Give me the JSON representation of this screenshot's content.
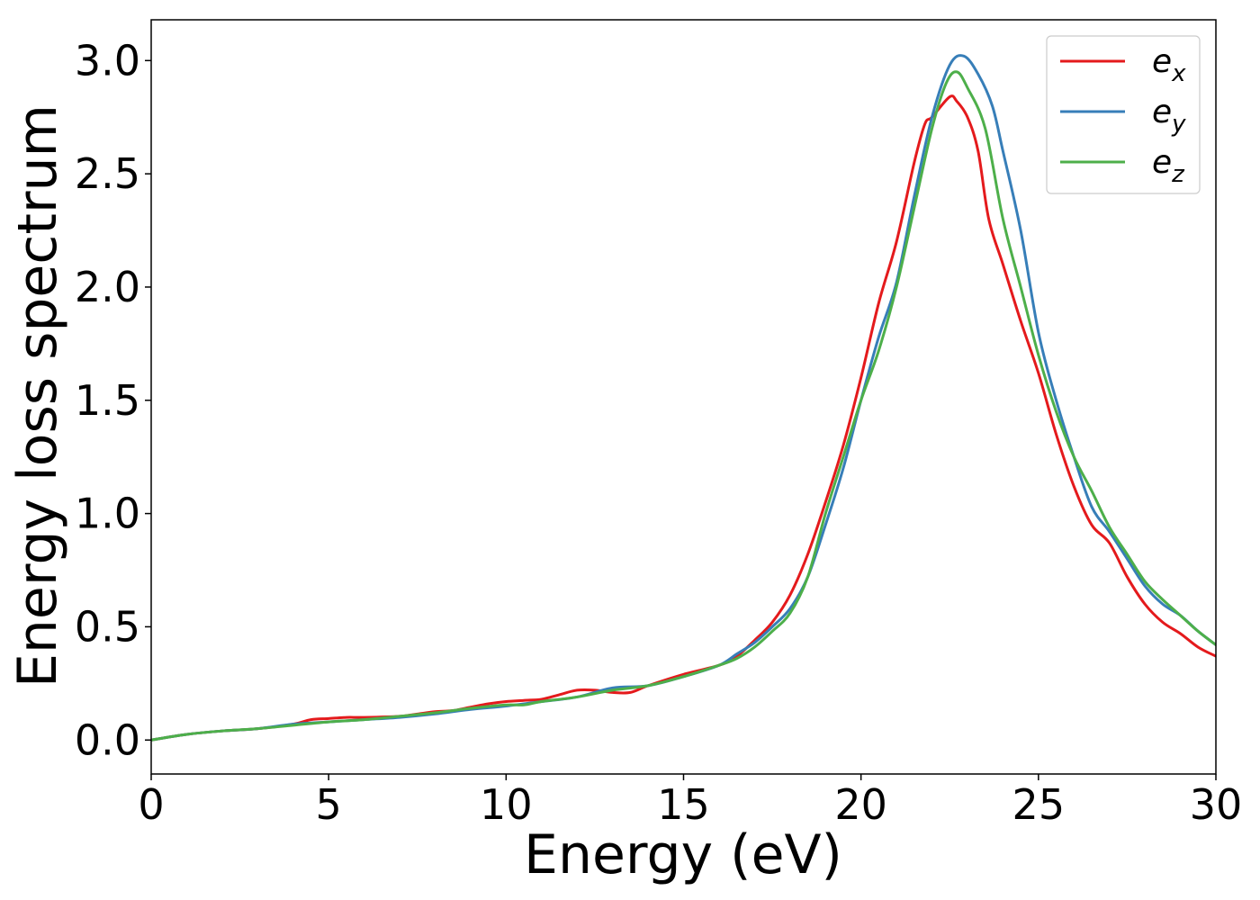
{
  "chart_data": {
    "type": "line",
    "title": "",
    "xlabel": "Energy (eV)",
    "ylabel": "Energy loss spectrum",
    "xlim": [
      0,
      30
    ],
    "ylim": [
      -0.15,
      3.18
    ],
    "xticks": [
      0,
      5,
      10,
      15,
      20,
      25,
      30
    ],
    "xtick_labels": [
      "0",
      "5",
      "10",
      "15",
      "20",
      "25",
      "30"
    ],
    "yticks": [
      0.0,
      0.5,
      1.0,
      1.5,
      2.0,
      2.5,
      3.0
    ],
    "ytick_labels": [
      "0.0",
      "0.5",
      "1.0",
      "1.5",
      "2.0",
      "2.5",
      "3.0"
    ],
    "grid": false,
    "legend_position": "top-right",
    "series": [
      {
        "name": "e",
        "subscript": "x",
        "color": "#e41a1c",
        "x": [
          0,
          1,
          2,
          3,
          4,
          4.5,
          5,
          5.5,
          6,
          7,
          7.5,
          8,
          8.5,
          9,
          9.5,
          10,
          10.5,
          11,
          11.5,
          12,
          12.5,
          13,
          13.5,
          14,
          15,
          16,
          16.5,
          17,
          17.5,
          18,
          18.5,
          19,
          19.5,
          20,
          20.5,
          21,
          21.5,
          21.8,
          22,
          22.5,
          22.7,
          23,
          23.3,
          23.6,
          24,
          24.5,
          25,
          25.5,
          26,
          26.5,
          27,
          27.5,
          28,
          28.5,
          29,
          29.5,
          30
        ],
        "y": [
          0.0,
          0.025,
          0.04,
          0.05,
          0.07,
          0.09,
          0.095,
          0.1,
          0.1,
          0.105,
          0.115,
          0.125,
          0.13,
          0.145,
          0.16,
          0.17,
          0.175,
          0.18,
          0.2,
          0.22,
          0.22,
          0.21,
          0.21,
          0.24,
          0.29,
          0.33,
          0.37,
          0.44,
          0.52,
          0.64,
          0.82,
          1.05,
          1.3,
          1.6,
          1.93,
          2.2,
          2.55,
          2.72,
          2.75,
          2.84,
          2.82,
          2.75,
          2.6,
          2.3,
          2.1,
          1.85,
          1.62,
          1.35,
          1.12,
          0.95,
          0.87,
          0.72,
          0.6,
          0.52,
          0.47,
          0.41,
          0.37
        ]
      },
      {
        "name": "e",
        "subscript": "y",
        "color": "#377eb8",
        "x": [
          0,
          1,
          2,
          3,
          4,
          5,
          6,
          7,
          8,
          9,
          10,
          11,
          12,
          13,
          14,
          15,
          16,
          16.5,
          17,
          17.5,
          18,
          18.5,
          19,
          19.5,
          20,
          20.5,
          21,
          21.5,
          22,
          22.5,
          22.9,
          23.3,
          23.7,
          24,
          24.5,
          25,
          25.5,
          26,
          26.5,
          27,
          27.5,
          28,
          28.5,
          29,
          29.5,
          30
        ],
        "y": [
          0.0,
          0.025,
          0.04,
          0.05,
          0.07,
          0.08,
          0.09,
          0.1,
          0.115,
          0.135,
          0.15,
          0.17,
          0.19,
          0.23,
          0.24,
          0.28,
          0.33,
          0.38,
          0.43,
          0.5,
          0.58,
          0.72,
          0.95,
          1.2,
          1.5,
          1.78,
          2.02,
          2.4,
          2.75,
          2.98,
          3.02,
          2.94,
          2.8,
          2.6,
          2.25,
          1.8,
          1.5,
          1.25,
          1.03,
          0.92,
          0.8,
          0.68,
          0.6,
          0.55,
          0.48,
          0.42
        ]
      },
      {
        "name": "e",
        "subscript": "z",
        "color": "#4daf4a",
        "x": [
          0,
          1,
          2,
          3,
          4,
          5,
          6,
          7,
          8,
          9,
          10,
          10.5,
          11,
          12,
          13,
          14,
          15,
          16,
          16.5,
          17,
          17.5,
          18,
          18.5,
          19,
          19.5,
          20,
          20.5,
          21,
          21.5,
          22,
          22.4,
          22.7,
          23,
          23.5,
          24,
          24.5,
          25,
          25.5,
          26,
          26.5,
          27,
          27.5,
          28,
          28.5,
          29,
          29.5,
          30
        ],
        "y": [
          0.0,
          0.025,
          0.04,
          0.05,
          0.065,
          0.08,
          0.09,
          0.105,
          0.12,
          0.14,
          0.155,
          0.155,
          0.17,
          0.19,
          0.22,
          0.24,
          0.28,
          0.33,
          0.36,
          0.41,
          0.48,
          0.56,
          0.72,
          1.0,
          1.25,
          1.5,
          1.72,
          2.0,
          2.35,
          2.7,
          2.9,
          2.95,
          2.88,
          2.7,
          2.3,
          2.0,
          1.7,
          1.45,
          1.25,
          1.1,
          0.94,
          0.82,
          0.7,
          0.62,
          0.55,
          0.48,
          0.42
        ]
      }
    ]
  }
}
